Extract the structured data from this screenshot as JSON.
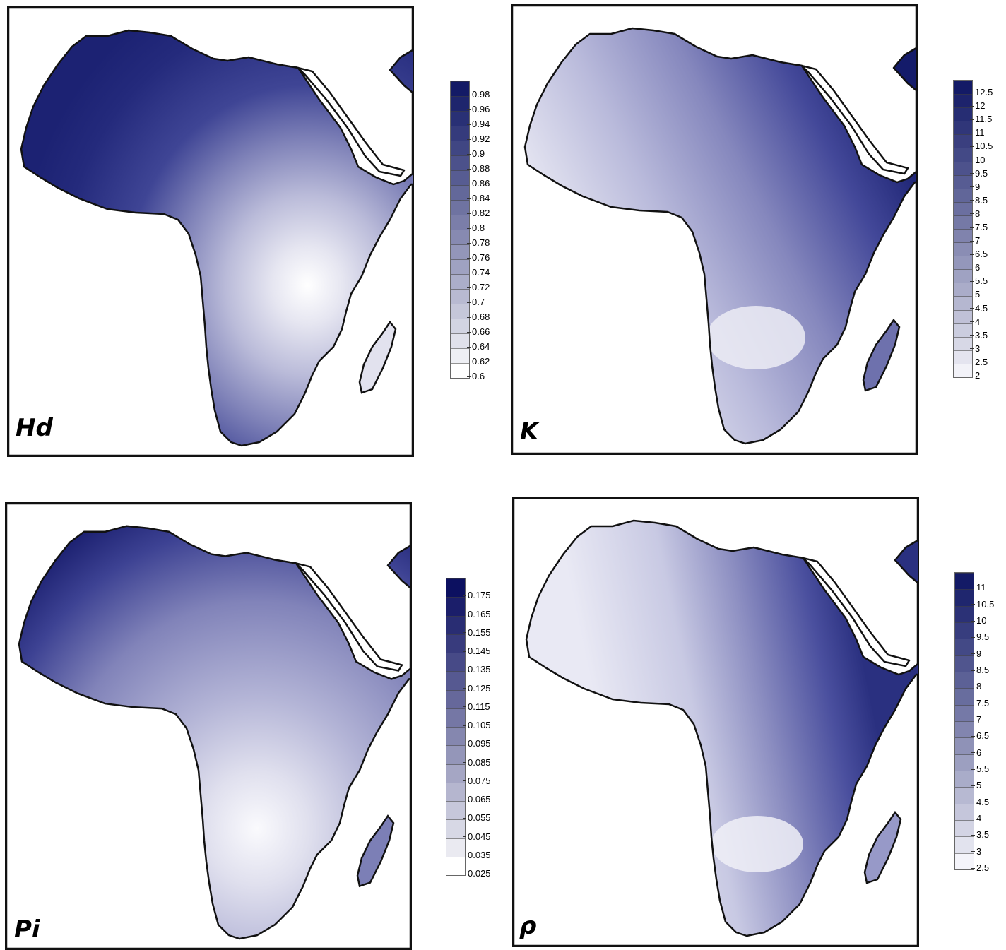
{
  "panels": [
    {
      "id": "hd",
      "label": "Hd",
      "legend_ticks": [
        "0.98",
        "0.96",
        "0.94",
        "0.92",
        "0.9",
        "0.88",
        "0.86",
        "0.84",
        "0.82",
        "0.8",
        "0.78",
        "0.76",
        "0.74",
        "0.72",
        "0.7",
        "0.68",
        "0.66",
        "0.64",
        "0.62",
        "0.6"
      ],
      "scale_min_color": "#ffffff",
      "scale_max_color": "#131a66"
    },
    {
      "id": "k",
      "label": "K",
      "legend_ticks": [
        "12.5",
        "12",
        "11.5",
        "11",
        "10.5",
        "10",
        "9.5",
        "9",
        "8.5",
        "8",
        "7.5",
        "7",
        "6.5",
        "6",
        "5.5",
        "5",
        "4.5",
        "4",
        "3.5",
        "3",
        "2.5",
        "2"
      ],
      "scale_min_color": "#f2f2f8",
      "scale_max_color": "#131a66"
    },
    {
      "id": "pi",
      "label": "Pi",
      "legend_ticks": [
        "0.175",
        "0.165",
        "0.155",
        "0.145",
        "0.135",
        "0.125",
        "0.115",
        "0.105",
        "0.095",
        "0.085",
        "0.075",
        "0.065",
        "0.055",
        "0.045",
        "0.035",
        "0.025"
      ],
      "scale_min_color": "#ffffff",
      "scale_max_color": "#0c1060"
    },
    {
      "id": "rho",
      "label": "ρ",
      "legend_ticks": [
        "11",
        "10.5",
        "10",
        "9.5",
        "9",
        "8.5",
        "8",
        "7.5",
        "7",
        "6.5",
        "6",
        "5.5",
        "5",
        "4.5",
        "4",
        "3.5",
        "3",
        "2.5"
      ],
      "scale_min_color": "#f4f4fa",
      "scale_max_color": "#131a66"
    }
  ]
}
